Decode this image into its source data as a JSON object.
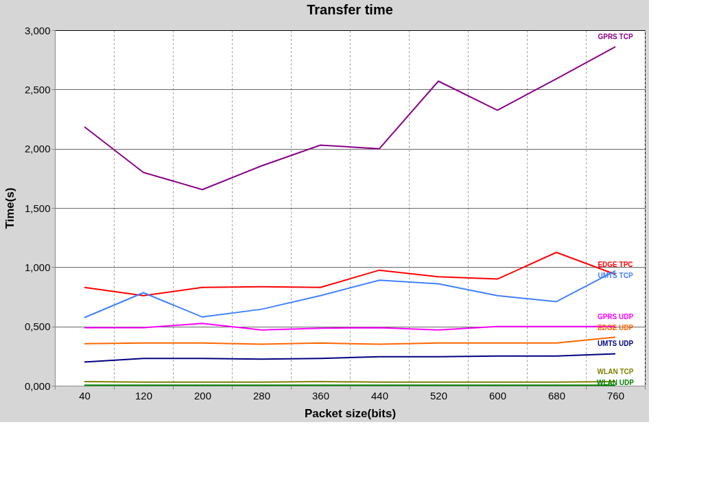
{
  "chart_data": {
    "type": "line",
    "title": "Transfer time",
    "xlabel": "Packet size(bits)",
    "ylabel": "Time(s)",
    "categories": [
      "40",
      "120",
      "200",
      "280",
      "360",
      "440",
      "520",
      "600",
      "680",
      "760"
    ],
    "ylim": [
      0,
      3
    ],
    "yticks": [
      {
        "value": 0,
        "label": "0,000"
      },
      {
        "value": 0.5,
        "label": "0,500"
      },
      {
        "value": 1,
        "label": "1,000"
      },
      {
        "value": 1.5,
        "label": "1,500"
      },
      {
        "value": 2,
        "label": "2,000"
      },
      {
        "value": 2.5,
        "label": "2,500"
      },
      {
        "value": 3,
        "label": "3,000"
      }
    ],
    "grid": true,
    "legend": false,
    "marker": "none",
    "line_style": "solid",
    "series": [
      {
        "name": "GPRS TCP",
        "color": "#880088",
        "values": [
          2.185,
          1.8,
          1.655,
          1.855,
          2.03,
          2.0,
          2.57,
          2.325,
          2.59,
          2.86
        ]
      },
      {
        "name": "EDGE TPC",
        "color": "#ff0000",
        "values": [
          0.83,
          0.76,
          0.83,
          0.835,
          0.83,
          0.975,
          0.92,
          0.9,
          1.125,
          0.94
        ]
      },
      {
        "name": "UMTS TCP",
        "color": "#4080ff",
        "values": [
          0.575,
          0.785,
          0.58,
          0.645,
          0.76,
          0.89,
          0.86,
          0.76,
          0.71,
          0.97
        ]
      },
      {
        "name": "GPRS UDP",
        "color": "#ff00ff",
        "values": [
          0.49,
          0.49,
          0.525,
          0.47,
          0.485,
          0.49,
          0.47,
          0.5,
          0.5,
          0.5
        ]
      },
      {
        "name": "EDGE UDP",
        "color": "#ff6600",
        "values": [
          0.355,
          0.36,
          0.36,
          0.35,
          0.36,
          0.35,
          0.36,
          0.36,
          0.36,
          0.41
        ]
      },
      {
        "name": "UMTS UDP",
        "color": "#000080",
        "values": [
          0.2,
          0.23,
          0.23,
          0.225,
          0.23,
          0.245,
          0.245,
          0.25,
          0.25,
          0.27
        ]
      },
      {
        "name": "WLAN TCP",
        "color": "#808000",
        "values": [
          0.035,
          0.03,
          0.03,
          0.03,
          0.035,
          0.03,
          0.03,
          0.03,
          0.03,
          0.035
        ]
      },
      {
        "name": "WLAN UDP",
        "color": "#008000",
        "values": [
          0.005,
          0.005,
          0.005,
          0.005,
          0.005,
          0.005,
          0.005,
          0.005,
          0.005,
          0.005
        ]
      }
    ]
  }
}
